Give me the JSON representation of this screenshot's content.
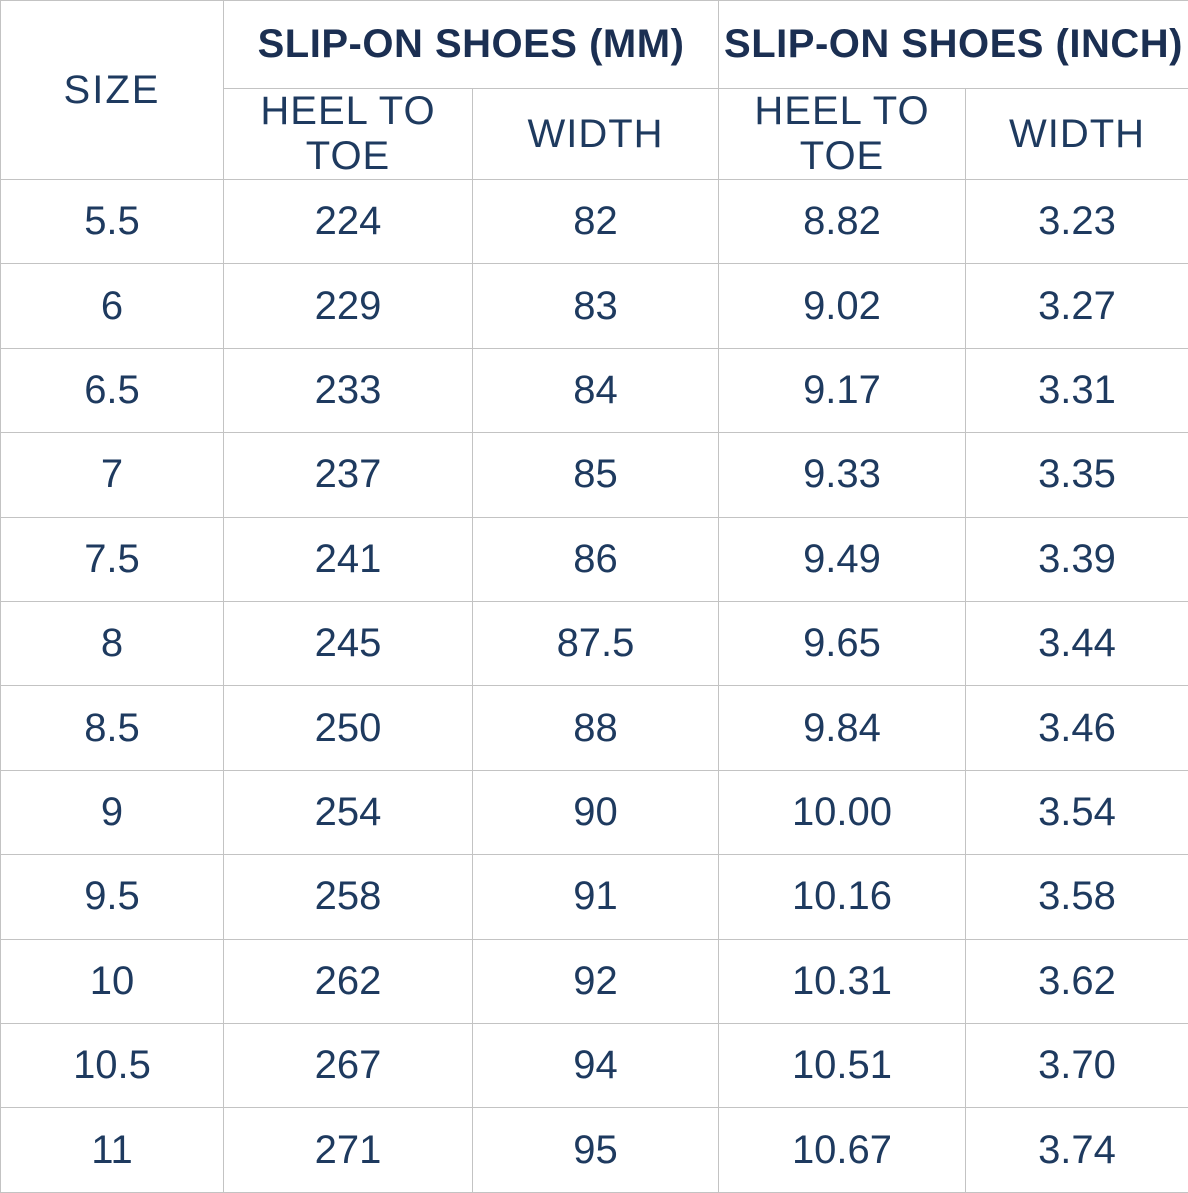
{
  "colors": {
    "header_text": "#1b2f52",
    "body_text": "#1e3a5f",
    "border": "#c3c3c3",
    "background": "#ffffff"
  },
  "table": {
    "size_header": "SIZE",
    "groups": [
      {
        "label": "SLIP-ON SHOES (MM)"
      },
      {
        "label": "SLIP-ON SHOES (INCH)"
      }
    ],
    "sub_headers": [
      "HEEL TO TOE",
      "WIDTH",
      "HEEL TO TOE",
      "WIDTH"
    ],
    "rows": [
      {
        "size": "5.5",
        "mm_heel_to_toe": "224",
        "mm_width": "82",
        "inch_heel_to_toe": "8.82",
        "inch_width": "3.23"
      },
      {
        "size": "6",
        "mm_heel_to_toe": "229",
        "mm_width": "83",
        "inch_heel_to_toe": "9.02",
        "inch_width": "3.27"
      },
      {
        "size": "6.5",
        "mm_heel_to_toe": "233",
        "mm_width": "84",
        "inch_heel_to_toe": "9.17",
        "inch_width": "3.31"
      },
      {
        "size": "7",
        "mm_heel_to_toe": "237",
        "mm_width": "85",
        "inch_heel_to_toe": "9.33",
        "inch_width": "3.35"
      },
      {
        "size": "7.5",
        "mm_heel_to_toe": "241",
        "mm_width": "86",
        "inch_heel_to_toe": "9.49",
        "inch_width": "3.39"
      },
      {
        "size": "8",
        "mm_heel_to_toe": "245",
        "mm_width": "87.5",
        "inch_heel_to_toe": "9.65",
        "inch_width": "3.44"
      },
      {
        "size": "8.5",
        "mm_heel_to_toe": "250",
        "mm_width": "88",
        "inch_heel_to_toe": "9.84",
        "inch_width": "3.46"
      },
      {
        "size": "9",
        "mm_heel_to_toe": "254",
        "mm_width": "90",
        "inch_heel_to_toe": "10.00",
        "inch_width": "3.54"
      },
      {
        "size": "9.5",
        "mm_heel_to_toe": "258",
        "mm_width": "91",
        "inch_heel_to_toe": "10.16",
        "inch_width": "3.58"
      },
      {
        "size": "10",
        "mm_heel_to_toe": "262",
        "mm_width": "92",
        "inch_heel_to_toe": "10.31",
        "inch_width": "3.62"
      },
      {
        "size": "10.5",
        "mm_heel_to_toe": "267",
        "mm_width": "94",
        "inch_heel_to_toe": "10.51",
        "inch_width": "3.70"
      },
      {
        "size": "11",
        "mm_heel_to_toe": "271",
        "mm_width": "95",
        "inch_heel_to_toe": "10.67",
        "inch_width": "3.74"
      }
    ]
  },
  "chart_data": {
    "type": "table",
    "title": "Slip-on shoes size chart",
    "columns": [
      "SIZE",
      "SLIP-ON SHOES (MM) - HEEL TO TOE",
      "SLIP-ON SHOES (MM) - WIDTH",
      "SLIP-ON SHOES (INCH) - HEEL TO TOE",
      "SLIP-ON SHOES (INCH) - WIDTH"
    ],
    "rows": [
      [
        "5.5",
        224,
        82,
        8.82,
        3.23
      ],
      [
        "6",
        229,
        83,
        9.02,
        3.27
      ],
      [
        "6.5",
        233,
        84,
        9.17,
        3.31
      ],
      [
        "7",
        237,
        85,
        9.33,
        3.35
      ],
      [
        "7.5",
        241,
        86,
        9.49,
        3.39
      ],
      [
        "8",
        245,
        87.5,
        9.65,
        3.44
      ],
      [
        "8.5",
        250,
        88,
        9.84,
        3.46
      ],
      [
        "9",
        254,
        90,
        10.0,
        3.54
      ],
      [
        "9.5",
        258,
        91,
        10.16,
        3.58
      ],
      [
        "10",
        262,
        92,
        10.31,
        3.62
      ],
      [
        "10.5",
        267,
        94,
        10.51,
        3.7
      ],
      [
        "11",
        271,
        95,
        10.67,
        3.74
      ]
    ]
  }
}
